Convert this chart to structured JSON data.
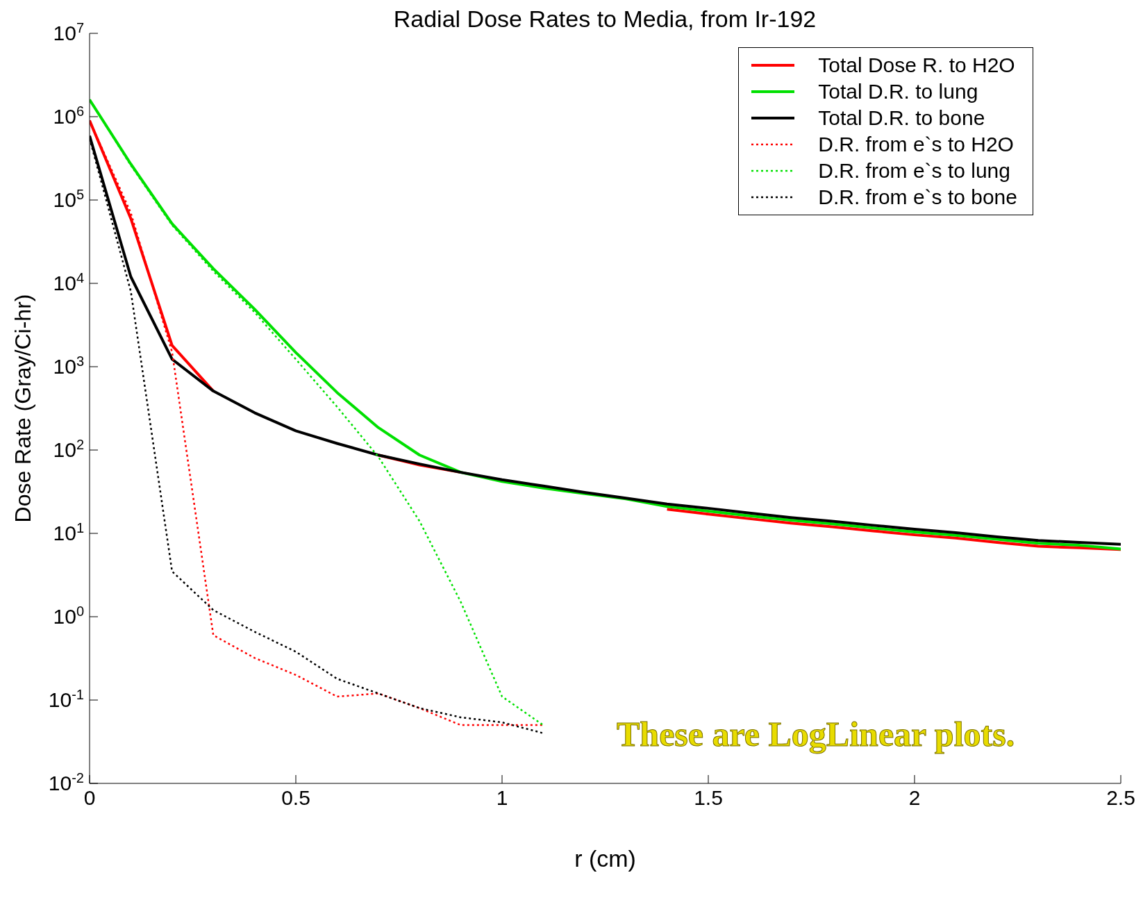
{
  "chart_data": {
    "type": "line",
    "title": "Radial Dose Rates to Media, from Ir-192",
    "xlabel": "r (cm)",
    "ylabel": "Dose Rate (Gray/Ci-hr)",
    "log": "y",
    "grid": false,
    "legend": "top right",
    "marker": "none",
    "xlim": [
      0,
      2.5
    ],
    "xticks": [
      0,
      0.5,
      1,
      1.5,
      2,
      2.5
    ],
    "ylim": [
      0.01,
      10000000
    ],
    "yticks": [
      {
        "value": 0.01,
        "label": "10$^{-2}$"
      },
      {
        "value": 0.1,
        "label": "10$^{-1}$"
      },
      {
        "value": 1,
        "label": "10$^{0}$"
      },
      {
        "value": 10,
        "label": "10$^{1}$"
      },
      {
        "value": 100,
        "label": "10$^{2}$"
      },
      {
        "value": 1000,
        "label": "10$^{3}$"
      },
      {
        "value": 10000,
        "label": "10$^{4}$"
      },
      {
        "value": 100000,
        "label": "10$^{5}$"
      },
      {
        "value": 1000000,
        "label": "10$^{6}$"
      },
      {
        "value": 10000000,
        "label": "10$^{7}$"
      }
    ],
    "annotations": [
      "These are LogLinear plots."
    ],
    "series": [
      {
        "name": "Total Dose R. to H2O",
        "color": "#ff0000",
        "line_style": "solid",
        "x": [
          0,
          0.1,
          0.2,
          0.3,
          0.4,
          0.5,
          0.6,
          0.7,
          0.8,
          0.9,
          1,
          1.1,
          1.2,
          1.3,
          1.4,
          1.5,
          1.6,
          1.7,
          1.8,
          1.9,
          2,
          2.1,
          2.2,
          2.3,
          2.4,
          2.5
        ],
        "values": [
          900000,
          60000,
          1800,
          510,
          null,
          null,
          null,
          87,
          66,
          54,
          null,
          null,
          null,
          null,
          19.5,
          17,
          15,
          13.3,
          12,
          10.7,
          9.6,
          8.8,
          7.8,
          7.0,
          6.7,
          6.4
        ]
      },
      {
        "name": "Total D.R. to lung",
        "color": "#00e000",
        "line_style": "solid",
        "x": [
          0,
          0.1,
          0.2,
          0.3,
          0.4,
          0.5,
          0.6,
          0.7,
          0.8,
          0.9,
          1,
          1.1,
          1.2,
          1.3,
          1.4,
          1.5,
          1.6,
          1.7,
          1.8,
          1.9,
          2,
          2.1,
          2.2,
          2.3,
          2.4,
          2.5
        ],
        "values": [
          1600000,
          270000,
          52000,
          15000,
          4900,
          1480,
          490,
          186,
          87,
          54,
          42,
          35,
          30,
          26,
          21,
          18.5,
          16.2,
          14.4,
          13,
          11.6,
          10.4,
          9.5,
          8.5,
          7.6,
          7.2,
          6.5
        ]
      },
      {
        "name": "Total D.R. to bone",
        "color": "#000000",
        "line_style": "solid",
        "x": [
          0,
          0.1,
          0.2,
          0.3,
          0.4,
          0.5,
          0.6,
          0.7,
          0.8,
          0.9,
          1,
          1.1,
          1.2,
          1.3,
          1.4,
          1.5,
          1.6,
          1.7,
          1.8,
          1.9,
          2,
          2.1,
          2.2,
          2.3,
          2.4,
          2.5
        ],
        "values": [
          590000,
          12000,
          1230,
          510,
          280,
          170,
          120,
          87,
          68,
          54,
          44,
          37,
          31,
          26.5,
          22.5,
          20,
          17.5,
          15.5,
          14,
          12.5,
          11.2,
          10.2,
          9.1,
          8.2,
          7.8,
          7.4
        ]
      },
      {
        "name": "D.R. from e`s to H2O",
        "color": "#ff0000",
        "line_style": "dotted",
        "x": [
          0,
          0.1,
          0.2,
          0.3,
          0.4,
          0.5,
          0.6,
          0.7,
          0.8,
          0.9,
          1,
          1.1
        ],
        "values": [
          900000,
          70000,
          1500,
          0.6,
          0.32,
          0.2,
          0.11,
          0.12,
          0.08,
          0.05,
          0.05,
          0.05
        ]
      },
      {
        "name": "D.R. from e`s to lung",
        "color": "#00e000",
        "line_style": "dotted",
        "x": [
          0,
          0.1,
          0.2,
          0.3,
          0.4,
          0.5,
          0.6,
          0.7,
          0.8,
          0.9,
          1,
          1.1
        ],
        "values": [
          1600000,
          260000,
          50000,
          14000,
          4500,
          1230,
          330,
          83,
          14,
          1.5,
          0.11,
          0.05
        ]
      },
      {
        "name": "D.R. from e`s to bone",
        "color": "#000000",
        "line_style": "dotted",
        "x": [
          0,
          0.1,
          0.2,
          0.3,
          0.4,
          0.5,
          0.6,
          0.7,
          0.8,
          0.9,
          1,
          1.1
        ],
        "values": [
          550000,
          8000,
          3.5,
          1.2,
          0.66,
          0.38,
          0.18,
          0.12,
          0.08,
          0.062,
          0.054,
          0.04
        ]
      }
    ]
  }
}
